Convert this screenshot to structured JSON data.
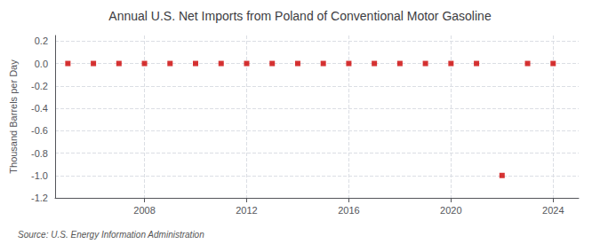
{
  "chart_data": {
    "type": "scatter",
    "title": "Annual U.S. Net Imports from Poland of Conventional Motor Gasoline",
    "ylabel": "Thousand Barrels per Day",
    "annotation": "Source: U.S. Energy Information Administration",
    "x": [
      2005,
      2006,
      2007,
      2008,
      2009,
      2010,
      2011,
      2012,
      2013,
      2014,
      2015,
      2016,
      2017,
      2018,
      2019,
      2020,
      2021,
      2022,
      2023,
      2024
    ],
    "values": [
      0,
      0,
      0,
      0,
      0,
      0,
      0,
      0,
      0,
      0,
      0,
      0,
      0,
      0,
      0,
      0,
      0,
      -1.0,
      0,
      0
    ],
    "color": "#cc0000",
    "marker": "square",
    "xlim": [
      2004.5,
      2025.0
    ],
    "ylim": [
      -1.2,
      0.25
    ],
    "xticks": [
      2008,
      2012,
      2016,
      2020,
      2024
    ],
    "yticks": [
      0.2,
      {
        "value": 0.0,
        "label": "0.0"
      },
      -0.2,
      -0.4,
      -0.6,
      -0.8,
      {
        "value": -1.0,
        "label": "-1.0"
      },
      -1.2
    ],
    "grid": true
  }
}
